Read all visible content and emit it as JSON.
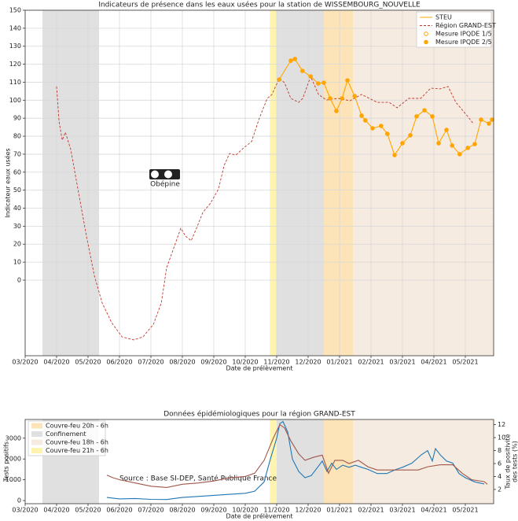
{
  "chart_data": [
    {
      "type": "line",
      "title": "Indicateurs de présence dans les eaux usées pour la station de WISSEMBOURG_NOUVELLE",
      "ylabel": "Indicateur eaux usées",
      "xlabel": "Date de prélèvement",
      "watermark": "Obépine",
      "grid": true,
      "legend": "upper right",
      "xlim": [
        0,
        14.9
      ],
      "xticks": [
        {
          "value": 0,
          "label": "03/2020"
        },
        {
          "value": 1,
          "label": "04/2020"
        },
        {
          "value": 2,
          "label": "05/2020"
        },
        {
          "value": 3,
          "label": "06/2020"
        },
        {
          "value": 4,
          "label": "07/2020"
        },
        {
          "value": 5,
          "label": "08/2020"
        },
        {
          "value": 6,
          "label": "09/2020"
        },
        {
          "value": 7,
          "label": "10/2020"
        },
        {
          "value": 8,
          "label": "11/2020"
        },
        {
          "value": 9,
          "label": "12/2020"
        },
        {
          "value": 10,
          "label": "01/2021"
        },
        {
          "value": 11,
          "label": "02/2021"
        },
        {
          "value": 12,
          "label": "03/2021"
        },
        {
          "value": 13,
          "label": "04/2021"
        },
        {
          "value": 14,
          "label": "05/2021"
        }
      ],
      "ylim": [
        -42,
        150
      ],
      "yticks": [
        0,
        10,
        20,
        30,
        40,
        50,
        60,
        70,
        80,
        90,
        100,
        110,
        120,
        130,
        140,
        150
      ],
      "series": [
        {
          "name": "STEU",
          "color": "#ffa500",
          "style": "solid",
          "x": [
            8.08,
            8.45,
            8.58,
            8.82,
            9.08,
            9.32,
            9.5,
            9.7,
            9.9,
            10.08,
            10.25,
            10.48,
            10.7,
            10.82,
            11.05,
            11.32,
            11.52,
            11.75,
            12.0,
            12.25,
            12.45,
            12.7,
            12.95,
            13.15,
            13.4,
            13.58,
            13.82,
            14.08,
            14.3,
            14.5,
            14.75,
            14.85
          ],
          "values": [
            111.5,
            122,
            122.9,
            116.3,
            113.2,
            109.3,
            109.7,
            101,
            94,
            101,
            111,
            102.3,
            91.4,
            88.8,
            84.4,
            85.7,
            81.3,
            69.5,
            76.1,
            80.5,
            91,
            94.4,
            91,
            76.1,
            83.5,
            74.8,
            70,
            73.5,
            75.6,
            89.2,
            87,
            89.2
          ]
        },
        {
          "name": "Région GRAND-EST",
          "color": "#c0392b",
          "style": "dashed",
          "x": [
            1.0,
            1.08,
            1.18,
            1.28,
            1.45,
            1.7,
            1.95,
            2.2,
            2.45,
            2.75,
            3.08,
            3.45,
            3.75,
            4.08,
            4.33,
            4.5,
            4.7,
            4.95,
            5.1,
            5.28,
            5.45,
            5.65,
            5.9,
            6.15,
            6.33,
            6.5,
            6.7,
            6.95,
            7.2,
            7.45,
            7.7,
            7.85,
            8.08,
            8.25,
            8.45,
            8.7,
            8.83,
            9.08,
            9.33,
            9.58,
            9.95,
            10.33,
            10.7,
            11.2,
            11.58,
            11.83,
            12.2,
            12.58,
            12.9,
            13.2,
            13.45,
            13.7,
            14.08,
            14.25
          ],
          "values": [
            107.6,
            87.9,
            77.8,
            82.2,
            72.6,
            48.5,
            24.5,
            2.6,
            -12.7,
            -23.6,
            -31.5,
            -33.2,
            -31.5,
            -24.5,
            -12.7,
            7,
            16.6,
            28.9,
            24.5,
            21.9,
            28.9,
            37.6,
            42.9,
            50.7,
            63.8,
            70.4,
            69.5,
            73.5,
            77,
            90.1,
            101,
            103.2,
            112,
            109.7,
            101,
            98.8,
            101,
            113.2,
            103.2,
            100.1,
            101,
            99.7,
            103.2,
            98.8,
            98.8,
            95.8,
            101,
            101,
            106.7,
            106.3,
            107.6,
            98.8,
            90.9,
            87
          ]
        },
        {
          "name": "Mesure IPQDE 1/5",
          "color": "#ffa500",
          "style": "open-markers",
          "x": [],
          "values": []
        },
        {
          "name": "Mesure IPQDE 2/5",
          "color": "#ffa500",
          "style": "markers",
          "x": [
            8.08,
            8.45,
            8.58,
            8.82,
            9.08,
            9.32,
            9.5,
            9.7,
            9.9,
            10.08,
            10.25,
            10.48,
            10.7,
            10.82,
            11.05,
            11.32,
            11.52,
            11.75,
            12.0,
            12.25,
            12.45,
            12.7,
            12.95,
            13.15,
            13.4,
            13.58,
            13.82,
            14.08,
            14.3,
            14.5,
            14.75,
            14.85
          ],
          "values": [
            111.5,
            122,
            122.9,
            116.3,
            113.2,
            109.3,
            109.7,
            101,
            94,
            101,
            111,
            102.3,
            91.4,
            88.8,
            84.4,
            85.7,
            81.3,
            69.5,
            76.1,
            80.5,
            91,
            94.4,
            91,
            76.1,
            83.5,
            74.8,
            70,
            73.5,
            75.6,
            89.2,
            87,
            89.2
          ]
        }
      ]
    },
    {
      "type": "line",
      "title": "Données épidémiologiques pour la région GRAND-EST",
      "ylabel": "Tests positifs",
      "y2label": [
        "Taux de positivité",
        "des tests (%)"
      ],
      "xlabel": "Date de prélèvement",
      "watermark": "Source : Base SI-DEP, Santé Publique France",
      "grid": false,
      "legend": "upper left",
      "xlim": [
        0,
        14.9
      ],
      "xticks": [
        {
          "value": 0,
          "label": "03/2020"
        },
        {
          "value": 1,
          "label": "04/2020"
        },
        {
          "value": 2,
          "label": "05/2020"
        },
        {
          "value": 3,
          "label": "06/2020"
        },
        {
          "value": 4,
          "label": "07/2020"
        },
        {
          "value": 5,
          "label": "08/2020"
        },
        {
          "value": 6,
          "label": "09/2020"
        },
        {
          "value": 7,
          "label": "10/2020"
        },
        {
          "value": 8,
          "label": "11/2020"
        },
        {
          "value": 9,
          "label": "12/2020"
        },
        {
          "value": 10,
          "label": "01/2021"
        },
        {
          "value": 11,
          "label": "02/2021"
        },
        {
          "value": 12,
          "label": "03/2021"
        },
        {
          "value": 13,
          "label": "04/2021"
        },
        {
          "value": 14,
          "label": "05/2021"
        }
      ],
      "ylim": [
        -150,
        3900
      ],
      "yticks": [
        0,
        1000,
        2000,
        3000
      ],
      "y2lim": [
        -0.2,
        12.8
      ],
      "y2ticks": [
        2,
        4,
        6,
        8,
        10,
        12
      ],
      "periods": [
        {
          "name": "Couvre-feu 20h - 6h",
          "color": "#fde3b8",
          "start": 9.5,
          "end": 10.43
        },
        {
          "name": "Confinement",
          "color": "#e0e0e0",
          "start": [
            0.55,
            8.0
          ],
          "end": [
            2.35,
            9.5
          ]
        },
        {
          "name": "Couvre-feu 18h - 6h",
          "color": "#f6ebe1",
          "start": 10.43,
          "end": 14.9
        },
        {
          "name": "Couvre-feu 21h - 6h",
          "color": "#fff3b0",
          "start": 7.78,
          "end": 8.0
        }
      ],
      "series": [
        {
          "name": "Tests positifs",
          "color": "#1f77b4",
          "axis": "y",
          "x": [
            2.6,
            3.0,
            3.5,
            4.0,
            4.5,
            5.0,
            5.5,
            6.0,
            6.5,
            7.0,
            7.3,
            7.6,
            7.8,
            8.0,
            8.1,
            8.2,
            8.35,
            8.5,
            8.7,
            8.9,
            9.1,
            9.3,
            9.45,
            9.6,
            9.75,
            9.9,
            10.1,
            10.3,
            10.5,
            10.7,
            10.9,
            11.2,
            11.5,
            11.8,
            12.0,
            12.3,
            12.6,
            12.8,
            12.95,
            13.05,
            13.2,
            13.4,
            13.6,
            13.8,
            14.0,
            14.3,
            14.6
          ],
          "values": [
            150,
            80,
            100,
            60,
            50,
            150,
            200,
            250,
            300,
            350,
            450,
            900,
            2000,
            3000,
            3700,
            3800,
            3300,
            2000,
            1400,
            1100,
            1200,
            1600,
            1900,
            1400,
            1800,
            1500,
            1700,
            1600,
            1700,
            1600,
            1500,
            1300,
            1300,
            1500,
            1600,
            1800,
            2200,
            2400,
            1900,
            2500,
            2200,
            1900,
            1800,
            1300,
            1100,
            900,
            800
          ]
        },
        {
          "name": "Taux de positivité des tests (%)",
          "color": "#a0574a",
          "axis": "y2",
          "x": [
            2.6,
            2.8,
            3.0,
            3.5,
            4.0,
            4.5,
            5.0,
            5.5,
            6.0,
            6.5,
            7.0,
            7.3,
            7.6,
            7.9,
            8.1,
            8.25,
            8.45,
            8.7,
            8.9,
            9.2,
            9.45,
            9.65,
            9.85,
            10.1,
            10.3,
            10.6,
            10.9,
            11.2,
            11.5,
            12.0,
            12.5,
            12.8,
            13.2,
            13.6,
            13.9,
            14.2,
            14.6,
            14.7
          ],
          "values": [
            4.2,
            3.8,
            3.5,
            3.0,
            2.5,
            2.3,
            2.8,
            3.0,
            3.3,
            3.8,
            4.0,
            4.5,
            6.5,
            10.0,
            12.0,
            11.5,
            9.5,
            7.5,
            6.5,
            7.0,
            7.3,
            4.5,
            6.5,
            6.5,
            6.0,
            6.5,
            5.5,
            5.0,
            5.0,
            5.0,
            5.0,
            5.5,
            5.8,
            5.8,
            4.5,
            3.5,
            3.2,
            2.8
          ]
        }
      ]
    }
  ]
}
